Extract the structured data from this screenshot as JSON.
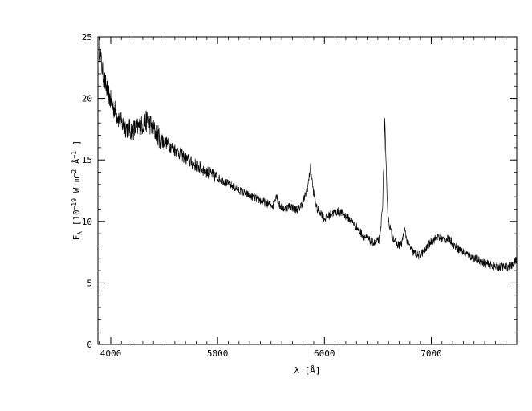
{
  "chart_data": {
    "type": "line",
    "title": "",
    "xlabel": "λ [Å]",
    "ylabel": "Fλ [10−19 W m−2 Å−1]",
    "ylabel_parts": {
      "symbol": "F",
      "symbol_sub": "λ",
      "open": "[10",
      "exp1": "−19",
      "unit_w": " W m",
      "exp2": "−2",
      "unit_a": " Å",
      "exp3": "−1",
      "close": "]"
    },
    "xlim": [
      3880,
      7800
    ],
    "ylim": [
      0,
      25
    ],
    "x_ticks": [
      4000,
      5000,
      6000,
      7000
    ],
    "x_tick_labels": [
      "4000",
      "5000",
      "6000",
      "7000"
    ],
    "y_ticks": [
      0,
      5,
      10,
      15,
      20,
      25
    ],
    "y_tick_labels": [
      "0",
      "5",
      "10",
      "15",
      "20",
      "25"
    ],
    "x_minor_step": 100,
    "y_minor_step": 1,
    "grid": false,
    "series": [
      {
        "color": "#000000",
        "points": [
          [
            3890,
            25.0
          ],
          [
            3910,
            23.0
          ],
          [
            3930,
            21.8
          ],
          [
            3960,
            20.8
          ],
          [
            4000,
            19.8
          ],
          [
            4050,
            18.8
          ],
          [
            4100,
            18.0
          ],
          [
            4150,
            17.6
          ],
          [
            4200,
            17.4
          ],
          [
            4250,
            17.6
          ],
          [
            4300,
            17.9
          ],
          [
            4340,
            18.2
          ],
          [
            4380,
            17.8
          ],
          [
            4420,
            17.2
          ],
          [
            4470,
            16.7
          ],
          [
            4550,
            16.2
          ],
          [
            4650,
            15.5
          ],
          [
            4750,
            14.8
          ],
          [
            4850,
            14.3
          ],
          [
            4950,
            13.8
          ],
          [
            5050,
            13.3
          ],
          [
            5150,
            12.8
          ],
          [
            5250,
            12.3
          ],
          [
            5350,
            11.9
          ],
          [
            5450,
            11.5
          ],
          [
            5520,
            11.3
          ],
          [
            5550,
            12.2
          ],
          [
            5580,
            11.3
          ],
          [
            5630,
            11.0
          ],
          [
            5680,
            11.3
          ],
          [
            5720,
            11.0
          ],
          [
            5760,
            11.0
          ],
          [
            5800,
            11.6
          ],
          [
            5840,
            12.6
          ],
          [
            5870,
            14.4
          ],
          [
            5895,
            12.5
          ],
          [
            5930,
            11.0
          ],
          [
            5970,
            10.7
          ],
          [
            6000,
            10.2
          ],
          [
            6030,
            10.4
          ],
          [
            6080,
            10.7
          ],
          [
            6130,
            10.8
          ],
          [
            6180,
            10.6
          ],
          [
            6230,
            10.2
          ],
          [
            6280,
            9.8
          ],
          [
            6320,
            9.3
          ],
          [
            6380,
            8.7
          ],
          [
            6430,
            8.4
          ],
          [
            6480,
            8.2
          ],
          [
            6520,
            8.6
          ],
          [
            6545,
            11.5
          ],
          [
            6560,
            16.0
          ],
          [
            6565,
            18.2
          ],
          [
            6575,
            15.0
          ],
          [
            6595,
            10.3
          ],
          [
            6630,
            8.9
          ],
          [
            6680,
            8.1
          ],
          [
            6720,
            8.1
          ],
          [
            6750,
            9.3
          ],
          [
            6780,
            8.2
          ],
          [
            6830,
            7.5
          ],
          [
            6880,
            7.2
          ],
          [
            6940,
            7.6
          ],
          [
            7000,
            8.4
          ],
          [
            7060,
            8.7
          ],
          [
            7120,
            8.5
          ],
          [
            7170,
            8.6
          ],
          [
            7220,
            8.0
          ],
          [
            7300,
            7.5
          ],
          [
            7400,
            7.0
          ],
          [
            7500,
            6.6
          ],
          [
            7600,
            6.3
          ],
          [
            7700,
            6.3
          ],
          [
            7760,
            6.4
          ],
          [
            7790,
            6.8
          ],
          [
            7800,
            6.7
          ]
        ]
      }
    ]
  }
}
